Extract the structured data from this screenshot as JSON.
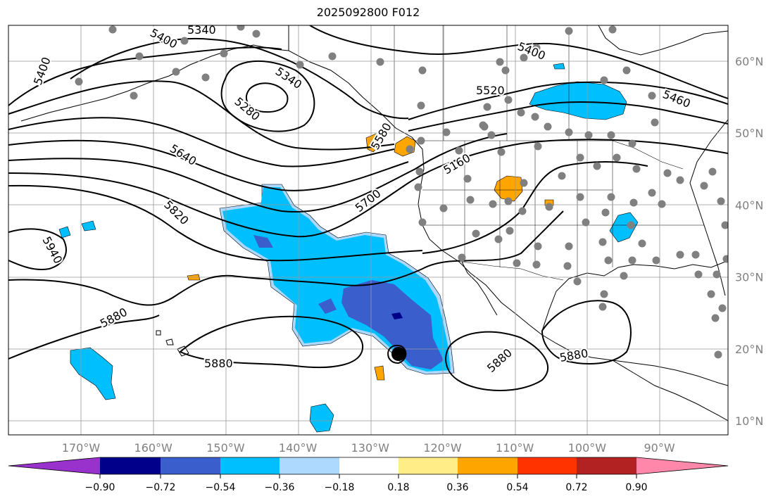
{
  "title": "2025092800 F012",
  "map": {
    "lon_ticks": [
      {
        "lon": -170,
        "label": "170°W"
      },
      {
        "lon": -160,
        "label": "160°W"
      },
      {
        "lon": -150,
        "label": "150°W"
      },
      {
        "lon": -140,
        "label": "140°W"
      },
      {
        "lon": -130,
        "label": "130°W"
      },
      {
        "lon": -120,
        "label": "120°W"
      },
      {
        "lon": -110,
        "label": "110°W"
      },
      {
        "lon": -100,
        "label": "100°W"
      },
      {
        "lon": -90,
        "label": "90°W"
      }
    ],
    "lat_ticks": [
      {
        "lat": 60,
        "label": "60°N"
      },
      {
        "lat": 50,
        "label": "50°N"
      },
      {
        "lat": 40,
        "label": "40°N"
      },
      {
        "lat": 30,
        "label": "30°N"
      },
      {
        "lat": 20,
        "label": "20°N"
      },
      {
        "lat": 10,
        "label": "10°N"
      }
    ],
    "contour_labels": [
      "5340",
      "5400",
      "5400",
      "5340",
      "5280",
      "5400",
      "5520",
      "5460",
      "5580",
      "5640",
      "5160",
      "5700",
      "5820",
      "5940",
      "5880",
      "5880",
      "5880",
      "5880"
    ],
    "colors": {
      "c_m090": "#9932cc",
      "c_m072": "#00008b",
      "c_m054": "#3a5fcd",
      "c_m036": "#00bfff",
      "c_m018": "#add8ff",
      "c_p018": "#ffffff",
      "c_p036": "#ffee88",
      "c_p054": "#ffa500",
      "c_p072": "#ff3300",
      "c_p090": "#b22222",
      "c_over": "#ff88aa",
      "station": "#808080",
      "marker": "#000000"
    }
  },
  "colorbar": {
    "ticks": [
      "−0.90",
      "−0.72",
      "−0.54",
      "−0.36",
      "−0.18",
      "0.18",
      "0.36",
      "0.54",
      "0.72",
      "0.90"
    ]
  }
}
